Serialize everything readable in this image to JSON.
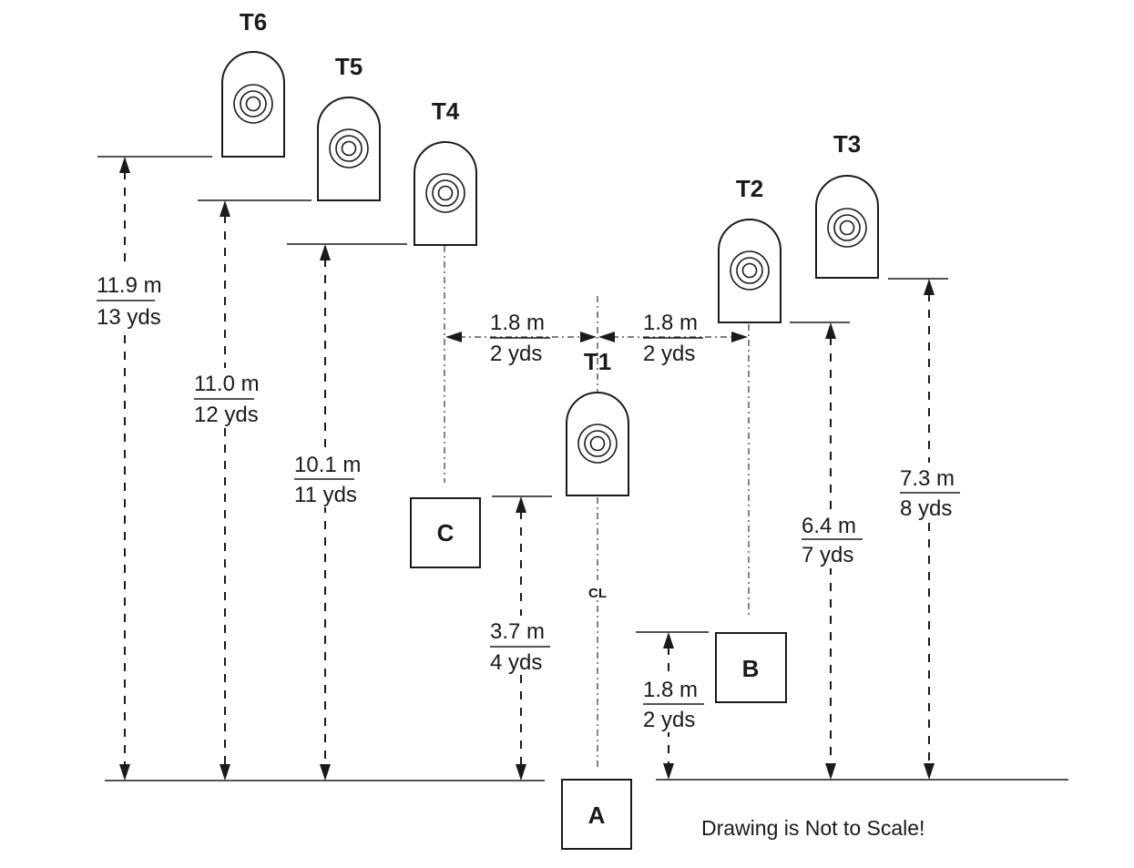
{
  "targets": {
    "t1": "T1",
    "t2": "T2",
    "t3": "T3",
    "t4": "T4",
    "t5": "T5",
    "t6": "T6"
  },
  "positions": {
    "a": "A",
    "b": "B",
    "c": "C"
  },
  "centerline": "CL",
  "dimensions": {
    "t6": {
      "metric": "11.9 m",
      "imperial": "13 yds"
    },
    "t5": {
      "metric": "11.0 m",
      "imperial": "12 yds"
    },
    "t4": {
      "metric": "10.1 m",
      "imperial": "11 yds"
    },
    "t1": {
      "metric": "3.7 m",
      "imperial": "4 yds"
    },
    "b": {
      "metric": "1.8 m",
      "imperial": "2 yds"
    },
    "t2": {
      "metric": "6.4 m",
      "imperial": "7 yds"
    },
    "t3": {
      "metric": "7.3 m",
      "imperial": "8 yds"
    },
    "left_offset": {
      "metric": "1.8 m",
      "imperial": "2 yds"
    },
    "right_offset": {
      "metric": "1.8 m",
      "imperial": "2 yds"
    }
  },
  "note": "Drawing is Not to Scale!"
}
